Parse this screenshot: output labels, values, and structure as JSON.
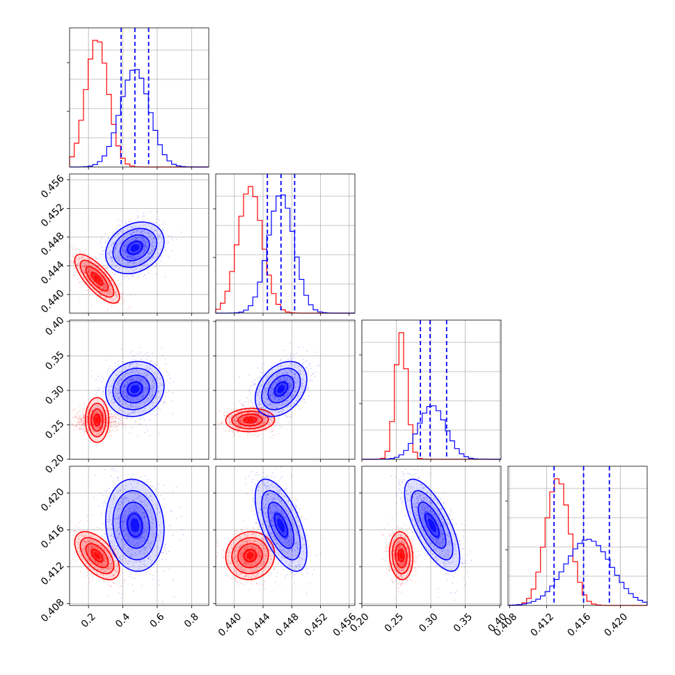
{
  "chart_data": {
    "type": "corner",
    "grid": true,
    "colors": {
      "red": "#ff0000",
      "blue": "#0000ff"
    },
    "parameters": [
      {
        "ticks": [
          0.2,
          0.4,
          0.6,
          0.8
        ],
        "tick_labels": [
          "0.2",
          "0.4",
          "0.6",
          "0.8"
        ],
        "range": [
          0.09,
          0.9
        ]
      },
      {
        "ticks": [
          0.44,
          0.444,
          0.448,
          0.452,
          0.456
        ],
        "tick_labels": [
          "0.440",
          "0.444",
          "0.448",
          "0.452",
          "0.456"
        ],
        "range": [
          0.4374,
          0.4568
        ]
      },
      {
        "ticks": [
          0.2,
          0.25,
          0.3,
          0.35,
          0.4
        ],
        "tick_labels": [
          "0.20",
          "0.25",
          "0.30",
          "0.35",
          "0.40"
        ],
        "range": [
          0.2,
          0.402
        ]
      },
      {
        "ticks": [
          0.408,
          0.412,
          0.416,
          0.42
        ],
        "tick_labels": [
          "0.408",
          "0.412",
          "0.416",
          "0.420"
        ],
        "range": [
          0.4078,
          0.4229
        ]
      }
    ],
    "series": [
      {
        "color": "red",
        "means": [
          0.25,
          0.4422,
          0.257,
          0.4132
        ],
        "sigmas": [
          0.065,
          0.0017,
          0.0085,
          0.0013
        ],
        "correlations": [
          [
            0,
            1,
            -0.75
          ],
          [
            2,
            3,
            -0.1
          ],
          [
            0,
            2,
            0.0
          ],
          [
            0,
            3,
            -0.55
          ],
          [
            1,
            2,
            0.05
          ],
          [
            1,
            3,
            0.05
          ]
        ]
      },
      {
        "color": "blue",
        "means": [
          0.47,
          0.4465,
          0.302,
          0.4165
        ],
        "sigmas": [
          0.085,
          0.0018,
          0.02,
          0.0025
        ],
        "correlations": [
          [
            0,
            1,
            0.25
          ],
          [
            0,
            2,
            0.1
          ],
          [
            0,
            3,
            -0.1
          ],
          [
            1,
            2,
            0.35
          ],
          [
            1,
            3,
            -0.6
          ],
          [
            2,
            3,
            -0.7
          ]
        ]
      }
    ],
    "quantiles_blue": [
      [
        0.39,
        0.47,
        0.55
      ],
      [
        0.4446,
        0.4465,
        0.4484
      ],
      [
        0.285,
        0.299,
        0.323
      ],
      [
        0.4128,
        0.416,
        0.4188
      ]
    ]
  }
}
